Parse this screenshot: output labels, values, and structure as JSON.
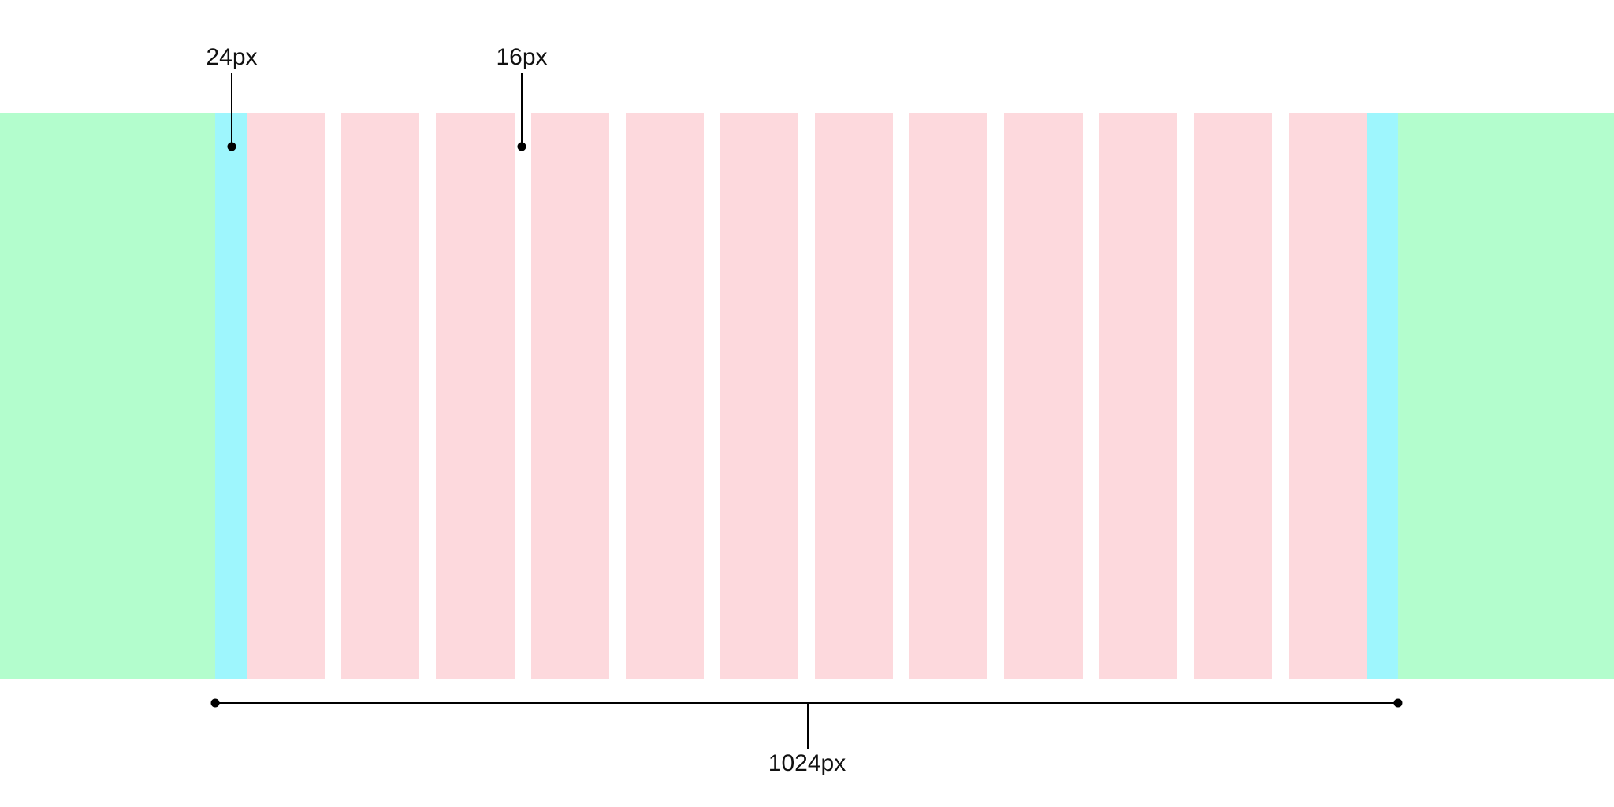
{
  "colors": {
    "outer_area": "#b3fdcd",
    "margin": "#9ef6fd",
    "column": "#fdd9dd",
    "annotation": "#000000"
  },
  "grid": {
    "column_count": 12
  },
  "annotations": {
    "margin_label": "24px",
    "gutter_label": "16px",
    "container_width_label": "1024px"
  }
}
